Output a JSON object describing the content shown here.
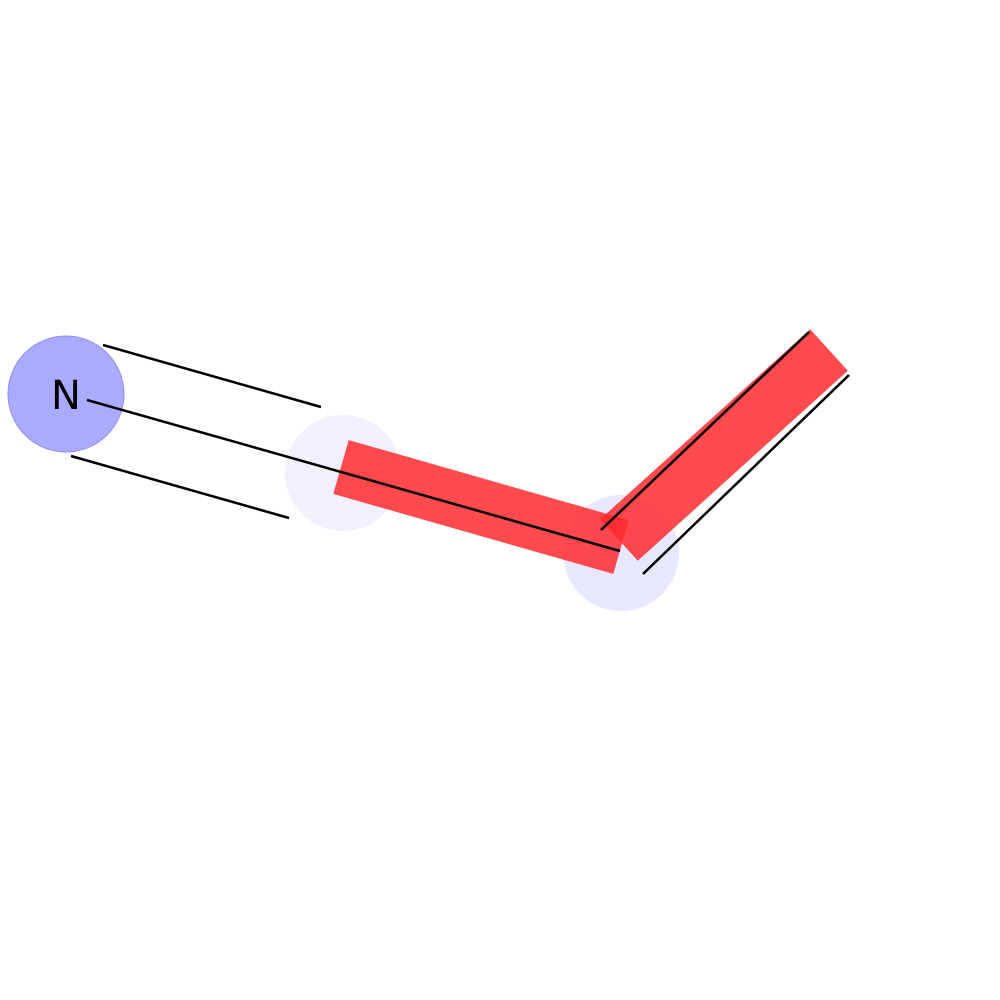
{
  "molecule": {
    "atoms": [
      {
        "id": "n1",
        "label": "N",
        "highlight_color": "#aaaaff"
      },
      {
        "id": "c1",
        "label": "",
        "highlight_color": "#eeeeff"
      },
      {
        "id": "c2",
        "label": "",
        "highlight_color": "#e6e6ff"
      },
      {
        "id": "c3",
        "label": ""
      }
    ],
    "bonds": [
      {
        "from": "n1",
        "to": "c1",
        "order": 3,
        "highlighted": false
      },
      {
        "from": "c1",
        "to": "c2",
        "order": 1,
        "highlighted": true
      },
      {
        "from": "c2",
        "to": "c3",
        "order": 2,
        "highlighted": true
      }
    ],
    "bond_highlight_color": "#ff2a2f"
  }
}
